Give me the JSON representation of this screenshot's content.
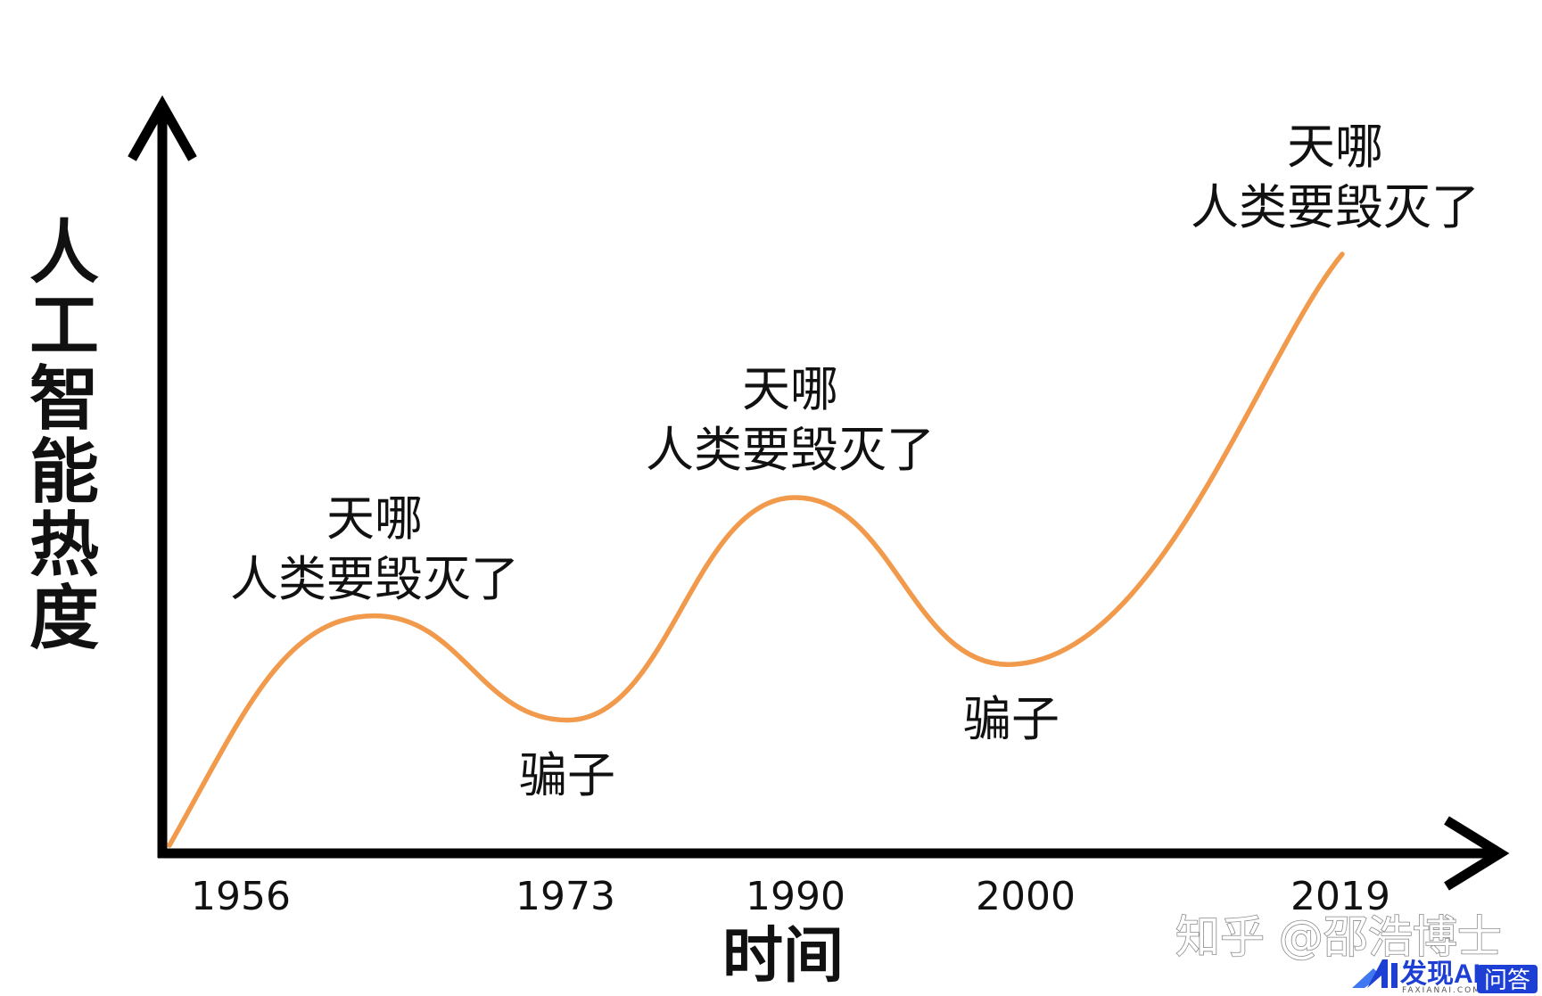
{
  "chart_data": {
    "type": "line",
    "x_axis_label": "时间",
    "y_axis_label": "人工智能热度",
    "x_ticks": [
      "1956",
      "1973",
      "1990",
      "2000",
      "2019"
    ],
    "x_ticks_numeric": [
      1956,
      1973,
      1990,
      2000,
      2019
    ],
    "grid": false,
    "y_ticks_shown": false,
    "series": [
      {
        "color": "#f29a4c",
        "points": [
          {
            "x": 1956,
            "y": 0
          },
          {
            "x": 1963,
            "y": 33
          },
          {
            "x": 1973,
            "y": 18
          },
          {
            "x": 1990,
            "y": 50
          },
          {
            "x": 2000,
            "y": 26
          },
          {
            "x": 2019,
            "y": 85
          }
        ]
      }
    ],
    "annotations": [
      {
        "line1": "天哪",
        "line2": "人类要毁灭了",
        "x": 1963,
        "y": 33,
        "placement": "above"
      },
      {
        "line1": "骗子",
        "x": 1973,
        "y": 18,
        "placement": "below"
      },
      {
        "line1": "天哪",
        "line2": "人类要毁灭了",
        "x": 1990,
        "y": 50,
        "placement": "above"
      },
      {
        "line1": "骗子",
        "x": 2000,
        "y": 26,
        "placement": "below"
      },
      {
        "line1": "天哪",
        "line2": "人类要毁灭了",
        "x": 2019,
        "y": 85,
        "placement": "above"
      }
    ]
  },
  "watermark": {
    "text": "知乎 @邵浩博士"
  },
  "badge": {
    "logo_mark": "AI",
    "brand": "发现AI",
    "brand_sub": "FAXIANAI.COM",
    "tag": "问答",
    "brand_color": "#1d3fd4"
  }
}
